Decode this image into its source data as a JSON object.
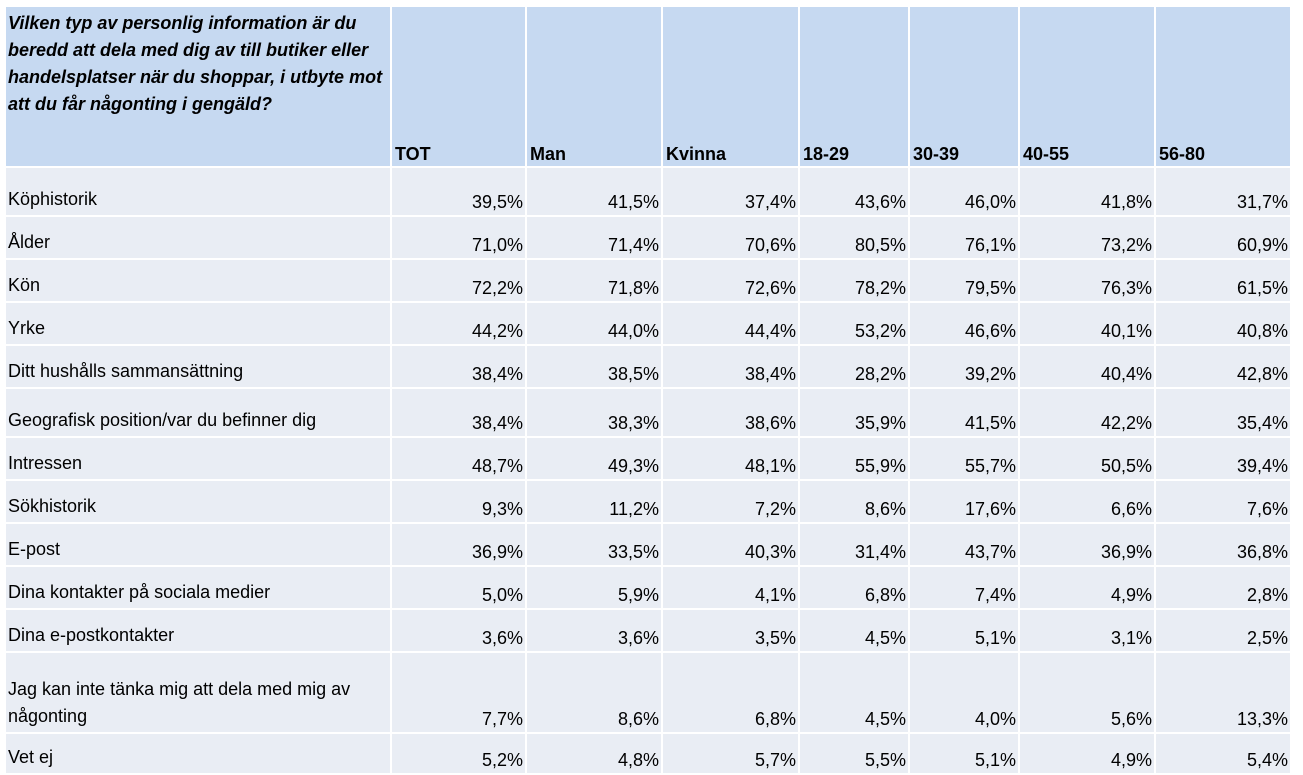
{
  "chart_data": {
    "type": "table",
    "title": "Vilken typ av personlig information är du beredd att dela med dig av till butiker eller handelsplatser när du shoppar, i utbyte mot att du får någonting i gengäld?",
    "columns": [
      "TOT",
      "Man",
      "Kvinna",
      "18-29",
      "30-39",
      "40-55",
      "56-80"
    ],
    "rows": [
      {
        "label": "Köphistorik",
        "values": [
          "39,5%",
          "41,5%",
          "37,4%",
          "43,6%",
          "46,0%",
          "41,8%",
          "31,7%"
        ]
      },
      {
        "label": "Ålder",
        "values": [
          "71,0%",
          "71,4%",
          "70,6%",
          "80,5%",
          "76,1%",
          "73,2%",
          "60,9%"
        ]
      },
      {
        "label": "Kön",
        "values": [
          "72,2%",
          "71,8%",
          "72,6%",
          "78,2%",
          "79,5%",
          "76,3%",
          "61,5%"
        ]
      },
      {
        "label": "Yrke",
        "values": [
          "44,2%",
          "44,0%",
          "44,4%",
          "53,2%",
          "46,6%",
          "40,1%",
          "40,8%"
        ]
      },
      {
        "label": "Ditt hushålls sammansättning",
        "values": [
          "38,4%",
          "38,5%",
          "38,4%",
          "28,2%",
          "39,2%",
          "40,4%",
          "42,8%"
        ]
      },
      {
        "label": "Geografisk position/var du befinner dig",
        "values": [
          "38,4%",
          "38,3%",
          "38,6%",
          "35,9%",
          "41,5%",
          "42,2%",
          "35,4%"
        ]
      },
      {
        "label": "Intressen",
        "values": [
          "48,7%",
          "49,3%",
          "48,1%",
          "55,9%",
          "55,7%",
          "50,5%",
          "39,4%"
        ]
      },
      {
        "label": "Sökhistorik",
        "values": [
          "9,3%",
          "11,2%",
          "7,2%",
          "8,6%",
          "17,6%",
          "6,6%",
          "7,6%"
        ]
      },
      {
        "label": "E-post",
        "values": [
          "36,9%",
          "33,5%",
          "40,3%",
          "31,4%",
          "43,7%",
          "36,9%",
          "36,8%"
        ]
      },
      {
        "label": "Dina kontakter på sociala medier",
        "values": [
          "5,0%",
          "5,9%",
          "4,1%",
          "6,8%",
          "7,4%",
          "4,9%",
          "2,8%"
        ]
      },
      {
        "label": "Dina e-postkontakter",
        "values": [
          "3,6%",
          "3,6%",
          "3,5%",
          "4,5%",
          "5,1%",
          "3,1%",
          "2,5%"
        ]
      },
      {
        "label": "Jag kan inte tänka mig att dela med mig av någonting",
        "values": [
          "7,7%",
          "8,6%",
          "6,8%",
          "4,5%",
          "4,0%",
          "5,6%",
          "13,3%"
        ]
      },
      {
        "label": "Vet ej",
        "values": [
          "5,2%",
          "4,8%",
          "5,7%",
          "5,5%",
          "5,1%",
          "4,9%",
          "5,4%"
        ]
      }
    ]
  },
  "colors": {
    "header_bg": "#c6d9f1",
    "row_bg": "#e9edf4",
    "grid": "#ffffff"
  }
}
